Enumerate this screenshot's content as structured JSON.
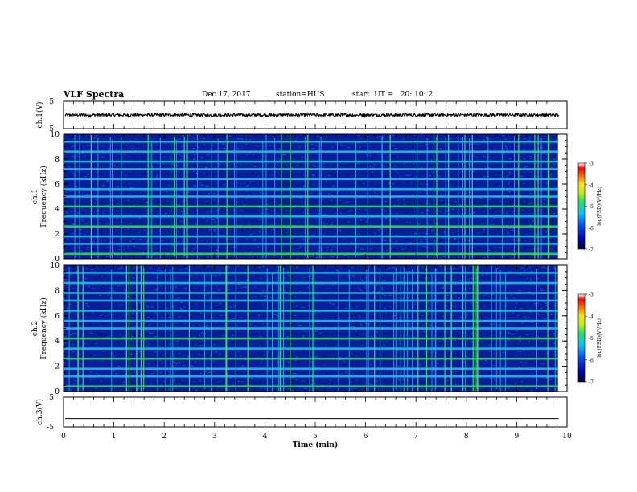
{
  "header": {
    "title": "VLF Spectra",
    "date": "Dec.17, 2017",
    "station": "station=HUS",
    "start": "start  UT =   20: 10: 2"
  },
  "chart_data": [
    {
      "type": "line",
      "panel": "ch1-waveform",
      "ylabel": "ch.1(V)",
      "ylim": [
        -5,
        5
      ],
      "yticks": [
        "5",
        "-5"
      ],
      "xlim": [
        0,
        10
      ],
      "series": [
        {
          "values_description": "noise",
          "mean": 0,
          "amplitude": 0.6
        }
      ]
    },
    {
      "type": "heatmap",
      "panel": "ch1-spectrogram",
      "ylabel_top": "ch.1",
      "ylabel": "Frequency  (kHz)",
      "ylim": [
        0,
        10
      ],
      "yticks": [
        "0",
        "2",
        "4",
        "6",
        "8",
        "10"
      ],
      "xlim": [
        0,
        10
      ],
      "data_end_min": 9.82,
      "band_freqs_khz": [
        0.4,
        1.2,
        1.8,
        2.6,
        3.4,
        4.2,
        5.0,
        5.6,
        6.4,
        7.2,
        7.8,
        8.6,
        9.4
      ],
      "colorbar": {
        "label": "log(PSD)(V²/Hz)",
        "range": [
          -7,
          -3
        ],
        "ticks": [
          "-3",
          "-4",
          "-5",
          "-6",
          "-7"
        ]
      }
    },
    {
      "type": "heatmap",
      "panel": "ch2-spectrogram",
      "ylabel_top": "ch.2",
      "ylabel": "Frequency  (kHz)",
      "ylim": [
        0,
        10
      ],
      "yticks": [
        "0",
        "2",
        "4",
        "6",
        "8",
        "10"
      ],
      "xlim": [
        0,
        10
      ],
      "data_end_min": 9.82,
      "band_freqs_khz": [
        0.4,
        1.2,
        1.8,
        2.6,
        3.4,
        4.2,
        5.0,
        5.6,
        6.4,
        7.2,
        7.8,
        8.6,
        9.4
      ],
      "colorbar": {
        "label": "log(PSD)(V²/Hz)",
        "range": [
          -7,
          -3
        ],
        "ticks": [
          "-3",
          "-4",
          "-5",
          "-6",
          "-7"
        ]
      }
    },
    {
      "type": "line",
      "panel": "ch3-waveform",
      "ylabel": "ch.3(V)",
      "ylim": [
        -5,
        5
      ],
      "yticks": [
        "5",
        "-5"
      ],
      "xlim": [
        0,
        10
      ],
      "series": [
        {
          "values_description": "flat",
          "mean": -2.2,
          "amplitude": 0
        }
      ]
    }
  ],
  "xaxis": {
    "label": "Time  (min)",
    "ticks": [
      "0",
      "1",
      "2",
      "3",
      "4",
      "5",
      "6",
      "7",
      "8",
      "9",
      "10"
    ]
  },
  "colors": {
    "spectro_bg": "#0a1e9a",
    "band_green": "#2ee65a",
    "band_cyan": "#20c8e8",
    "line": "#000000"
  }
}
